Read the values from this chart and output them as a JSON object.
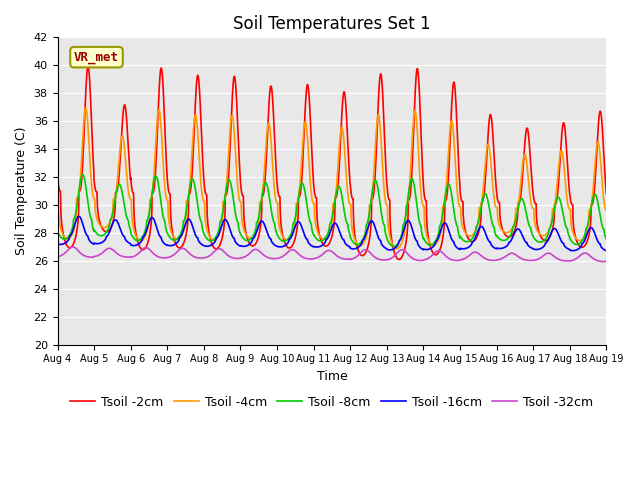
{
  "title": "Soil Temperatures Set 1",
  "xlabel": "Time",
  "ylabel": "Soil Temperature (C)",
  "ylim": [
    20,
    42
  ],
  "x_tick_labels": [
    "Aug 4",
    "Aug 5",
    "Aug 6",
    "Aug 7",
    "Aug 8",
    "Aug 9",
    "Aug 10",
    "Aug 11",
    "Aug 12",
    "Aug 13",
    "Aug 14",
    "Aug 15",
    "Aug 16",
    "Aug 17",
    "Aug 18",
    "Aug 19"
  ],
  "annotation_text": "VR_met",
  "colors": {
    "Tsoil -2cm": "#ff0000",
    "Tsoil -4cm": "#ff9900",
    "Tsoil -8cm": "#00cc00",
    "Tsoil -16cm": "#0000ff",
    "Tsoil -32cm": "#cc44cc"
  },
  "bg_color": "#e8e8e8",
  "title_fontsize": 12,
  "axis_fontsize": 9,
  "legend_fontsize": 9,
  "linewidth": 1.2,
  "depths": [
    2,
    4,
    8,
    16,
    32
  ],
  "peak_hour": 14.0,
  "lag_hours": [
    0,
    1.5,
    3.5,
    6.0,
    10.0
  ],
  "amplitudes": [
    9.0,
    6.5,
    3.2,
    1.4,
    0.5
  ],
  "base_temps": [
    31.0,
    30.5,
    29.0,
    27.8,
    26.5
  ],
  "base_trend": [
    -0.07,
    -0.06,
    -0.05,
    -0.04,
    -0.025
  ],
  "sharpness": [
    3,
    3,
    2,
    2,
    1.5
  ],
  "day_amp_scale_2": [
    1.0,
    0.7,
    1.0,
    0.95,
    0.95,
    0.88,
    0.9,
    0.85,
    1.0,
    1.05,
    0.95,
    0.7,
    0.6,
    0.65,
    0.75
  ],
  "day_amp_scale_4": [
    1.0,
    0.7,
    1.0,
    0.95,
    0.95,
    0.88,
    0.9,
    0.85,
    1.0,
    1.05,
    0.95,
    0.7,
    0.6,
    0.65,
    0.75
  ],
  "day_amp_scale_8": [
    1.0,
    0.8,
    1.0,
    0.95,
    0.95,
    0.9,
    0.9,
    0.85,
    1.0,
    1.05,
    0.95,
    0.75,
    0.65,
    0.7,
    0.78
  ],
  "day_amp_scale_16": [
    1.0,
    0.85,
    1.0,
    0.95,
    0.95,
    0.9,
    0.9,
    0.85,
    1.0,
    1.05,
    0.95,
    0.8,
    0.7,
    0.75,
    0.82
  ],
  "day_amp_scale_32": [
    1.0,
    0.85,
    1.0,
    0.95,
    0.95,
    0.9,
    0.9,
    0.85,
    1.0,
    1.05,
    0.95,
    0.8,
    0.7,
    0.75,
    0.82
  ]
}
